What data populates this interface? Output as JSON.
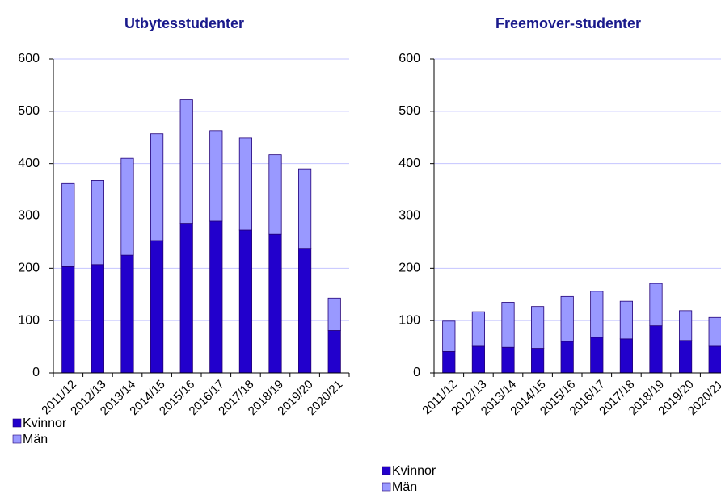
{
  "chart_data": [
    {
      "type": "bar",
      "stacked": true,
      "title": "Utbytesstudenter",
      "categories": [
        "2011/12",
        "2012/13",
        "2013/14",
        "2014/15",
        "2015/16",
        "2016/17",
        "2017/18",
        "2018/19",
        "2019/20",
        "2020/21"
      ],
      "series": [
        {
          "name": "Kvinnor",
          "color": "#2200cc",
          "values": [
            203,
            207,
            225,
            253,
            286,
            290,
            273,
            265,
            238,
            81
          ]
        },
        {
          "name": "Män",
          "color": "#9999ff",
          "values": [
            159,
            161,
            185,
            204,
            236,
            173,
            176,
            152,
            152,
            62
          ]
        }
      ],
      "ylim": [
        0,
        600
      ],
      "yticks": [
        0,
        100,
        200,
        300,
        400,
        500,
        600
      ],
      "grid": true
    },
    {
      "type": "bar",
      "stacked": true,
      "title": "Freemover-studenter",
      "categories": [
        "2011/12",
        "2012/13",
        "2013/14",
        "2014/15",
        "2015/16",
        "2016/17",
        "2017/18",
        "2018/19",
        "2019/20",
        "2020/21"
      ],
      "series": [
        {
          "name": "Kvinnor",
          "color": "#2200cc",
          "values": [
            41,
            51,
            49,
            47,
            60,
            68,
            65,
            90,
            62,
            51
          ]
        },
        {
          "name": "Män",
          "color": "#9999ff",
          "values": [
            58,
            66,
            86,
            80,
            86,
            88,
            72,
            81,
            57,
            55
          ]
        }
      ],
      "ylim": [
        0,
        600
      ],
      "yticks": [
        0,
        100,
        200,
        300,
        400,
        500,
        600
      ],
      "grid": true
    }
  ]
}
